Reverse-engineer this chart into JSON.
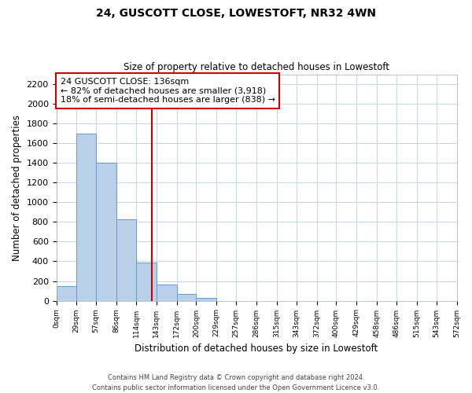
{
  "title": "24, GUSCOTT CLOSE, LOWESTOFT, NR32 4WN",
  "subtitle": "Size of property relative to detached houses in Lowestoft",
  "xlabel": "Distribution of detached houses by size in Lowestoft",
  "ylabel": "Number of detached properties",
  "bar_edges": [
    0,
    29,
    57,
    86,
    114,
    143,
    172,
    200,
    229,
    257,
    286,
    315,
    343,
    372,
    400,
    429,
    458,
    486,
    515,
    543,
    572
  ],
  "bar_heights": [
    150,
    1700,
    1400,
    830,
    390,
    165,
    65,
    30,
    0,
    0,
    0,
    0,
    0,
    0,
    0,
    0,
    0,
    0,
    0,
    0
  ],
  "bar_color": "#b8d0e8",
  "bar_edge_color": "#6699cc",
  "property_line_x": 136,
  "property_line_color": "#cc0000",
  "ylim": [
    0,
    2300
  ],
  "yticks": [
    0,
    200,
    400,
    600,
    800,
    1000,
    1200,
    1400,
    1600,
    1800,
    2000,
    2200
  ],
  "xtick_labels": [
    "0sqm",
    "29sqm",
    "57sqm",
    "86sqm",
    "114sqm",
    "143sqm",
    "172sqm",
    "200sqm",
    "229sqm",
    "257sqm",
    "286sqm",
    "315sqm",
    "343sqm",
    "372sqm",
    "400sqm",
    "429sqm",
    "458sqm",
    "486sqm",
    "515sqm",
    "543sqm",
    "572sqm"
  ],
  "annotation_title": "24 GUSCOTT CLOSE: 136sqm",
  "annotation_line1": "← 82% of detached houses are smaller (3,918)",
  "annotation_line2": "18% of semi-detached houses are larger (838) →",
  "footer1": "Contains HM Land Registry data © Crown copyright and database right 2024.",
  "footer2": "Contains public sector information licensed under the Open Government Licence v3.0.",
  "grid_color": "#c8d8e8",
  "background_color": "#ffffff"
}
